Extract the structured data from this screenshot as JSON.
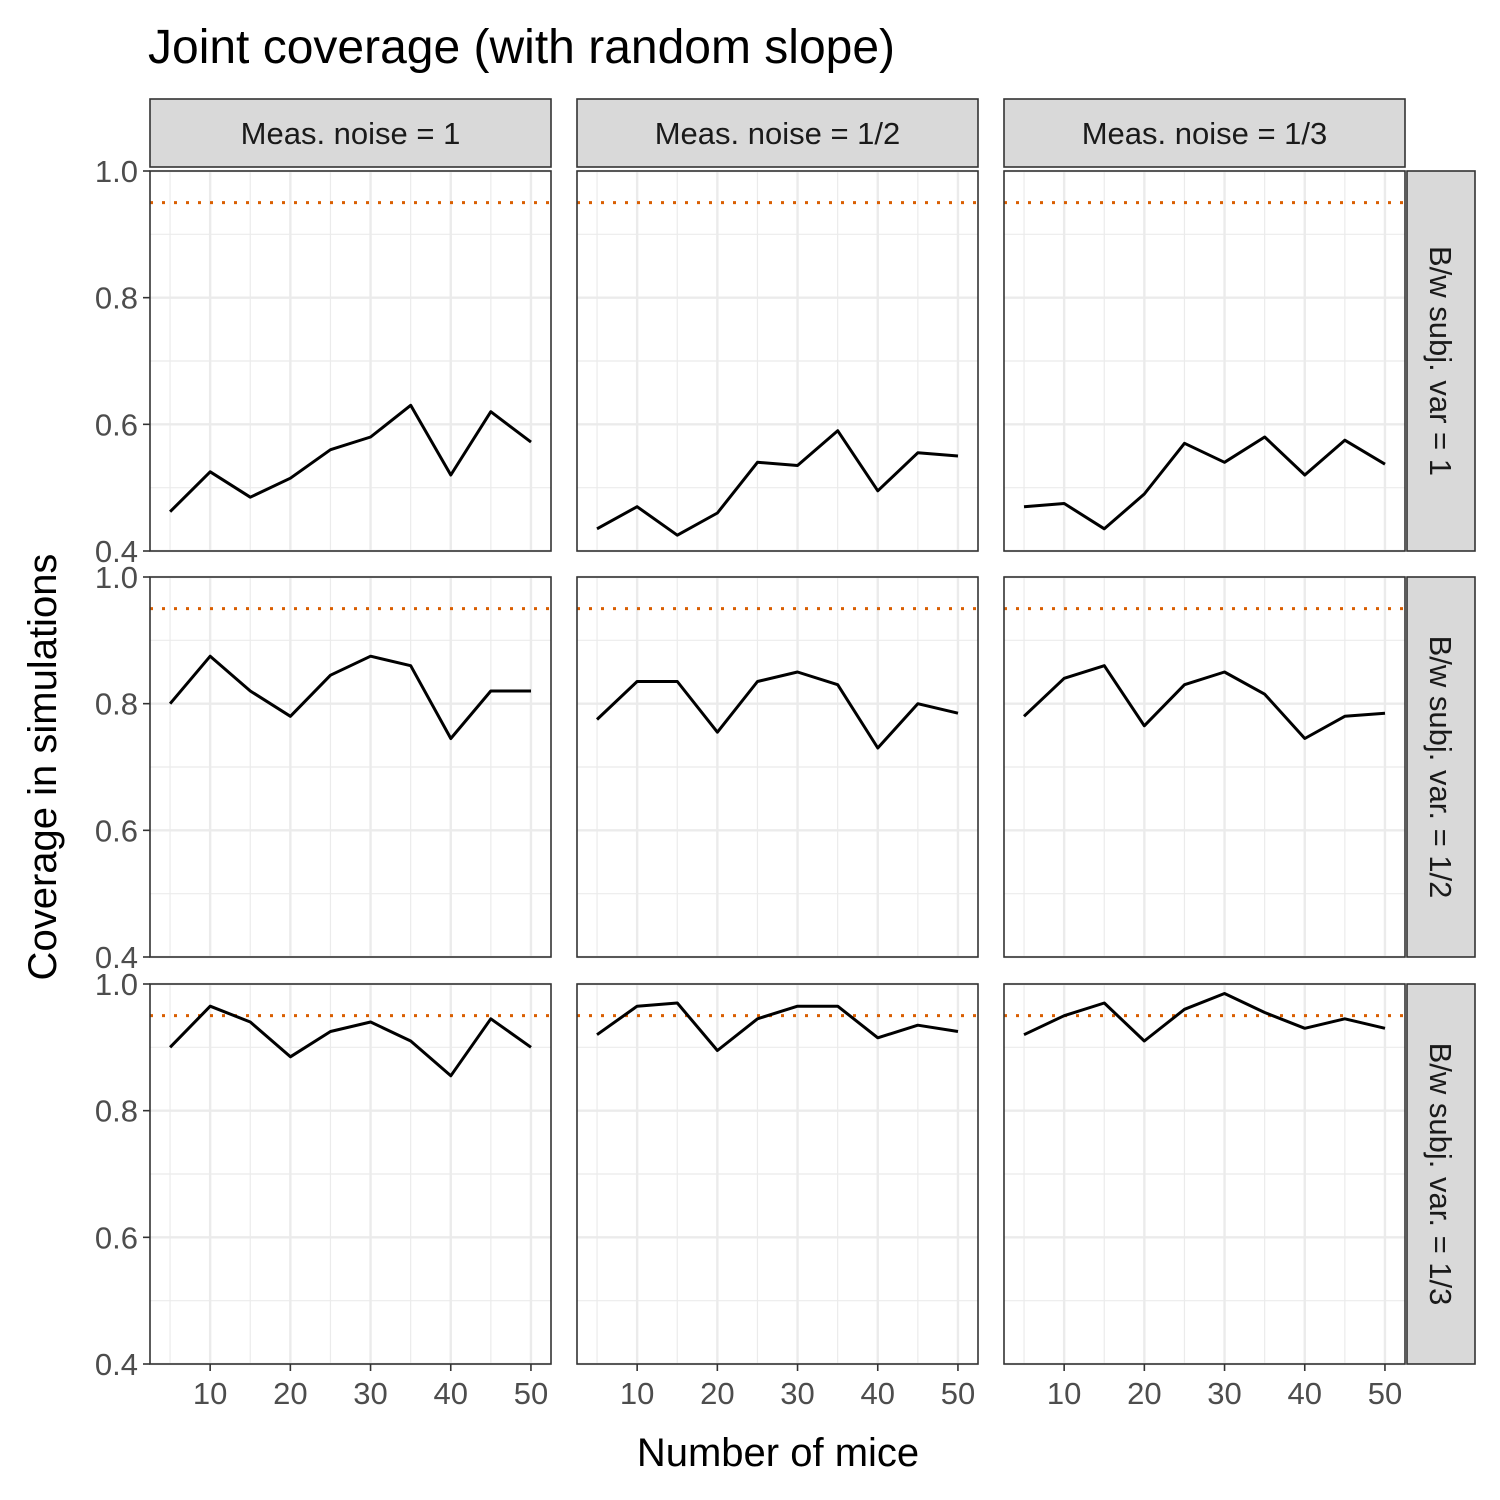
{
  "chart_data": {
    "type": "line",
    "title": "Joint coverage (with random slope)",
    "xlabel": "Number of mice",
    "ylabel": "Coverage in simulations",
    "xlim": [
      2.5,
      52.5
    ],
    "ylim": [
      0.4,
      1.0
    ],
    "x_ticks": [
      10,
      20,
      30,
      40,
      50
    ],
    "y_ticks": [
      0.4,
      0.6,
      0.8,
      1.0
    ],
    "y_tick_labels": [
      "0.4",
      "0.6",
      "0.8",
      "1.0"
    ],
    "x_minor_grid": [
      5,
      15,
      25,
      35,
      45
    ],
    "y_minor_grid": [
      0.5,
      0.7,
      0.9
    ],
    "reference_line": {
      "y": 0.95,
      "style": "dotted",
      "color": "#d95f02"
    },
    "line_color": "#000000",
    "grid": true,
    "column_facets": [
      "Meas. noise = 1",
      "Meas. noise = 1/2",
      "Meas. noise = 1/3"
    ],
    "row_facets": [
      "B/w subj. var = 1",
      "B/w subj. var. = 1/2",
      "B/w subj. var. = 1/3"
    ],
    "x": [
      5,
      10,
      15,
      20,
      25,
      30,
      35,
      40,
      45,
      50
    ],
    "panels": [
      {
        "row": 0,
        "col": 0,
        "values": [
          0.462,
          0.525,
          0.485,
          0.515,
          0.56,
          0.58,
          0.63,
          0.52,
          0.62,
          0.572
        ]
      },
      {
        "row": 0,
        "col": 1,
        "values": [
          0.435,
          0.47,
          0.425,
          0.46,
          0.54,
          0.535,
          0.59,
          0.495,
          0.555,
          0.55
        ]
      },
      {
        "row": 0,
        "col": 2,
        "values": [
          0.47,
          0.475,
          0.435,
          0.49,
          0.57,
          0.54,
          0.58,
          0.52,
          0.575,
          0.537
        ]
      },
      {
        "row": 1,
        "col": 0,
        "values": [
          0.8,
          0.875,
          0.82,
          0.78,
          0.845,
          0.875,
          0.86,
          0.745,
          0.82,
          0.82
        ]
      },
      {
        "row": 1,
        "col": 1,
        "values": [
          0.775,
          0.835,
          0.835,
          0.755,
          0.835,
          0.85,
          0.83,
          0.73,
          0.8,
          0.785
        ]
      },
      {
        "row": 1,
        "col": 2,
        "values": [
          0.78,
          0.84,
          0.86,
          0.765,
          0.83,
          0.85,
          0.815,
          0.745,
          0.78,
          0.785
        ]
      },
      {
        "row": 2,
        "col": 0,
        "values": [
          0.9,
          0.965,
          0.94,
          0.885,
          0.925,
          0.94,
          0.91,
          0.855,
          0.945,
          0.9
        ]
      },
      {
        "row": 2,
        "col": 1,
        "values": [
          0.92,
          0.965,
          0.97,
          0.895,
          0.945,
          0.965,
          0.965,
          0.915,
          0.935,
          0.925
        ]
      },
      {
        "row": 2,
        "col": 2,
        "values": [
          0.92,
          0.95,
          0.97,
          0.91,
          0.96,
          0.985,
          0.955,
          0.93,
          0.945,
          0.93
        ]
      }
    ]
  }
}
